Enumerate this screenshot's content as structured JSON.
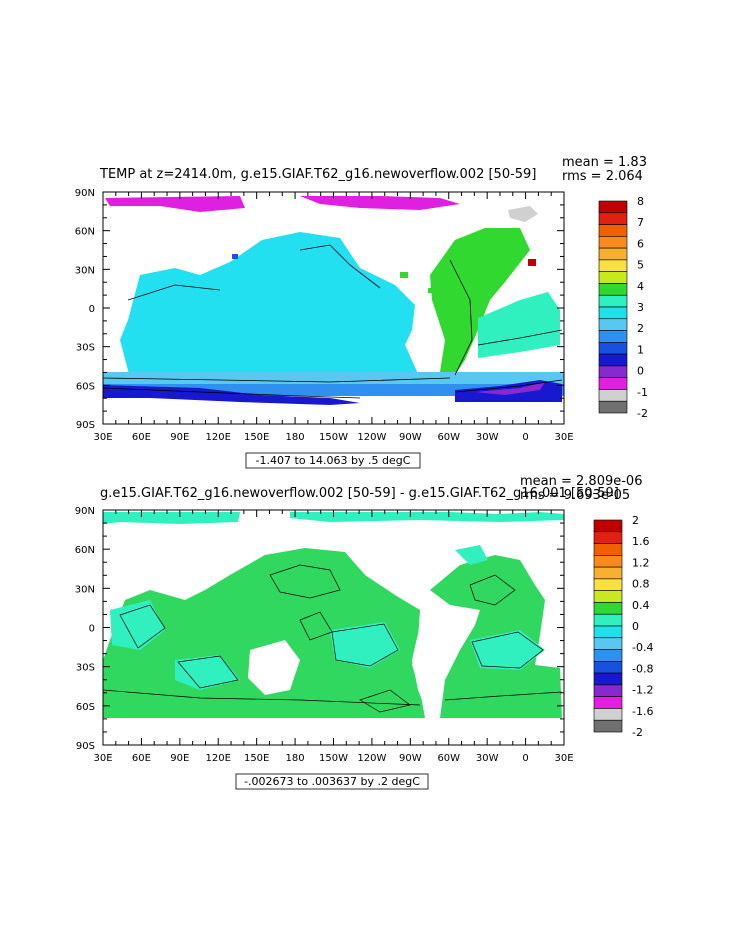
{
  "chart_data": [
    {
      "type": "heatmap",
      "title": "TEMP at z=2414.0m, g.e15.GIAF.T62_g16.newoverflow.002 [50-59]",
      "stats": {
        "mean": "mean = 1.83",
        "rms": "rms = 2.064"
      },
      "contour_info": "-1.407 to 14.063 by .5 degC",
      "x_ticks": [
        "30E",
        "60E",
        "90E",
        "120E",
        "150E",
        "180",
        "150W",
        "120W",
        "90W",
        "60W",
        "30W",
        "0",
        "30E"
      ],
      "y_ticks": [
        "90N",
        "60N",
        "30N",
        "0",
        "30S",
        "60S",
        "90S"
      ],
      "colorbar": {
        "labels": [
          "8",
          "7",
          "6",
          "5",
          "4",
          "3",
          "2",
          "1",
          "0",
          "-1",
          "-2"
        ],
        "colors": [
          "#c00000",
          "#e02010",
          "#f06000",
          "#f88a20",
          "#f8b030",
          "#f8e040",
          "#c8e820",
          "#30d830",
          "#30f0c0",
          "#20e0e8",
          "#58c8f0",
          "#3090f0",
          "#1850e0",
          "#1818d0",
          "#8828d0",
          "#e020e0",
          "#d0d0d0",
          "#707070"
        ]
      },
      "legend_colors": {
        "land": "#ffffff",
        "warm_pacific": "#22e0f0",
        "atlantic": "#30d830",
        "southern": "#3090f0",
        "antarctic": "#1818d0",
        "arctic": "#e020e0"
      }
    },
    {
      "type": "heatmap",
      "title": "g.e15.GIAF.T62_g16.newoverflow.002 [50-59] - g.e15.GIAF.T62_g16.001 [50-59]",
      "stats": {
        "mean": "mean = 2.809e-06",
        "rms": "rms = 9.693e-05"
      },
      "contour_info": "-.002673 to .003637 by .2 degC",
      "x_ticks": [
        "30E",
        "60E",
        "90E",
        "120E",
        "150E",
        "180",
        "150W",
        "120W",
        "90W",
        "60W",
        "30W",
        "0",
        "30E"
      ],
      "y_ticks": [
        "90N",
        "60N",
        "30N",
        "0",
        "30S",
        "60S",
        "90S"
      ],
      "colorbar": {
        "labels": [
          "2",
          "1.6",
          "1.2",
          "0.8",
          "0.4",
          "0",
          "-0.4",
          "-0.8",
          "-1.2",
          "-1.6",
          "-2"
        ],
        "colors": [
          "#c00000",
          "#e02010",
          "#f06000",
          "#f88a20",
          "#f8b030",
          "#f8e040",
          "#c8e820",
          "#30d830",
          "#30f0c0",
          "#20e0e8",
          "#58c8f0",
          "#3090f0",
          "#1850e0",
          "#1818d0",
          "#8828d0",
          "#e020e0",
          "#d0d0d0",
          "#707070"
        ]
      },
      "legend_colors": {
        "land": "#ffffff",
        "ocean": "#30d860",
        "arctic": "#30f0c0"
      }
    }
  ]
}
